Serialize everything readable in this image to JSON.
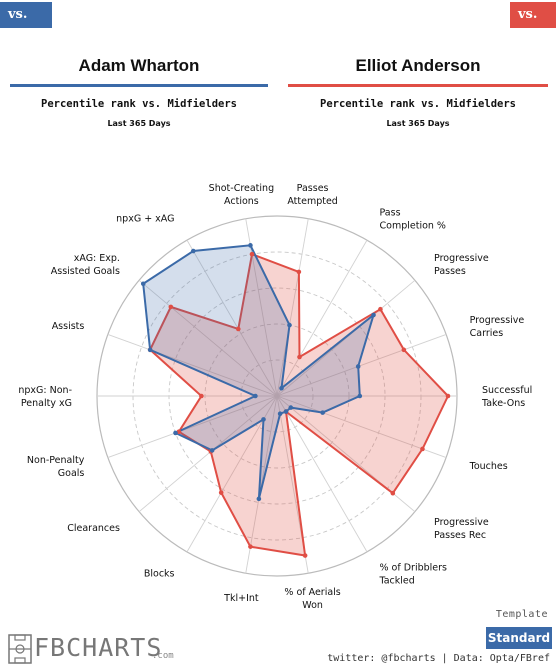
{
  "header": {
    "left_tag": "vs. MF",
    "right_tag": "vs. MF",
    "left_player": "Adam Wharton",
    "right_player": "Elliot Anderson",
    "left_subtitle": "Percentile rank vs. Midfielders",
    "right_subtitle": "Percentile rank vs. Midfielders",
    "left_period": "Last 365 Days",
    "right_period": "Last 365 Days"
  },
  "colors": {
    "left": "#3b6aa8",
    "right": "#e04e45"
  },
  "chart_data": {
    "type": "radar",
    "range": [
      0,
      100
    ],
    "rings": [
      20,
      40,
      60,
      80,
      100
    ],
    "categories": [
      "Passes\nAttempted",
      "Pass\nCompletion %",
      "Progressive\nPasses",
      "Progressive\nCarries",
      "Successful\nTake-Ons",
      "Touches",
      "Progressive\nPasses Rec",
      "% of Dribblers\nTackled",
      "% of Aerials\nWon",
      "Tkl+Int",
      "Blocks",
      "Clearances",
      "Non-Penalty\nGoals",
      "npxG: Non-\nPenalty xG",
      "Assists",
      "xAG: Exp.\nAssisted Goals",
      "npxG + xAG",
      "Shot-Creating\nActions"
    ],
    "series": [
      {
        "name": "Adam Wharton",
        "color": "#3b6aa8",
        "values": [
          40,
          5,
          70,
          48,
          46,
          27,
          10,
          10,
          10,
          58,
          15,
          47,
          60,
          12,
          75,
          97,
          93,
          85
        ]
      },
      {
        "name": "Elliot Anderson",
        "color": "#e04e45",
        "values": [
          70,
          25,
          75,
          75,
          95,
          86,
          84,
          10,
          90,
          85,
          62,
          48,
          58,
          42,
          75,
          77,
          43,
          80
        ]
      }
    ]
  },
  "footer": {
    "template_label": "Template",
    "standard_button": "Standard",
    "credit": "twitter: @fbcharts | Data: Opta/FBref",
    "logo": "FBCHARTS",
    "logo_suffix": ".com"
  }
}
